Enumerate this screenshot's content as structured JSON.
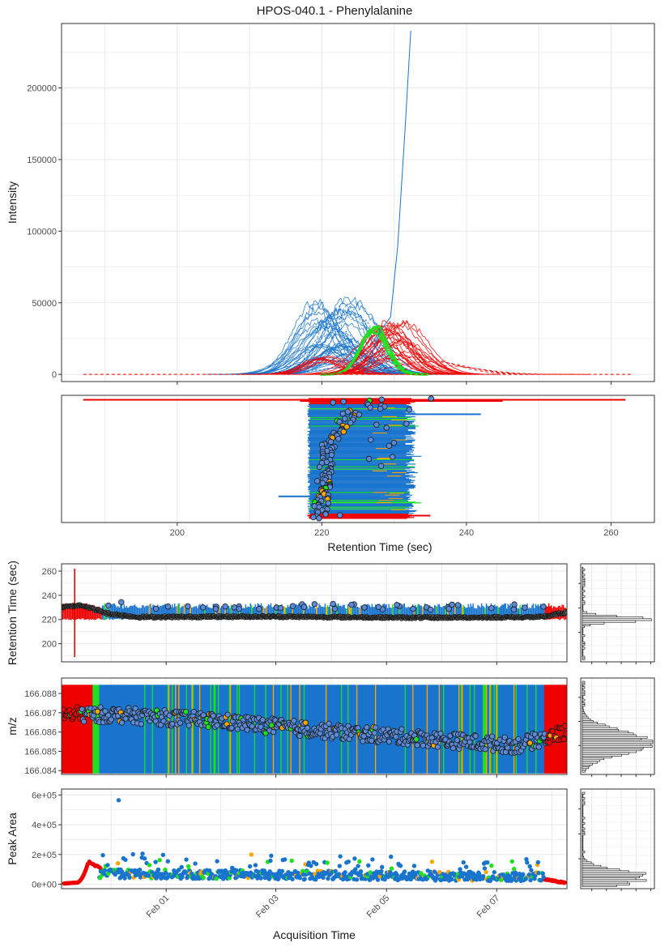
{
  "title": "HPOS-040.1 - Phenylalanine",
  "colors": {
    "blue": "#1874cd",
    "red": "#ee0000",
    "green": "#1fe01f",
    "orange": "#ffa500",
    "grid": "#ebebeb",
    "panel_border": "#333333",
    "marker_fill": "#5a8ad8",
    "marker_stroke": "#1a1a1a"
  },
  "chart_data": [
    {
      "id": "chromatogram",
      "type": "line",
      "ylabel": "Intensity",
      "xlabel": "",
      "xlim": [
        184,
        266
      ],
      "ylim": [
        -5000,
        245000
      ],
      "yticks": [
        0,
        50000,
        100000,
        150000,
        200000
      ],
      "ytick_labels": [
        "0",
        "50000",
        "100000",
        "150000",
        "200000"
      ],
      "xticks": [
        200,
        220,
        240,
        260
      ],
      "grid": true,
      "series": [
        {
          "color": "blue",
          "profile": "gaussian",
          "count": 45,
          "center_range": [
            219,
            225
          ],
          "height_range": [
            5000,
            55000
          ],
          "width": 3.2
        },
        {
          "color": "red",
          "profile": "gaussian",
          "count": 25,
          "center_range": [
            228,
            232
          ],
          "height_range": [
            10000,
            37000
          ],
          "width": 3.0
        },
        {
          "color": "red",
          "profile": "gaussian",
          "count": 8,
          "center_range": [
            219,
            222
          ],
          "height_range": [
            8000,
            13000
          ],
          "width": 2.5
        },
        {
          "color": "green",
          "profile": "gaussian",
          "count": 3,
          "center_range": [
            226.5,
            227.5
          ],
          "height_range": [
            22000,
            34000
          ],
          "width": 2.2
        },
        {
          "color": "blue",
          "profile": "spike",
          "points": [
            [
              226,
              0
            ],
            [
              228,
              30000
            ],
            [
              229.5,
              40000
            ],
            [
              230.5,
              90000
            ],
            [
              231.5,
              170000
            ],
            [
              232.3,
              240000
            ]
          ]
        },
        {
          "color": "red",
          "profile": "dashed-baseline",
          "x": [
            187,
            263
          ],
          "y": 0
        },
        {
          "color": "red",
          "profile": "dashed-tail",
          "center": 233,
          "height": 12000,
          "width": 5
        }
      ]
    },
    {
      "id": "peak-ranges",
      "type": "segment",
      "xlabel": "Retention Time (sec)",
      "xlim": [
        184,
        266
      ],
      "xticks": [
        200,
        220,
        240,
        260
      ],
      "xtick_labels": [
        "200",
        "220",
        "240",
        "260"
      ],
      "n_rows": 60,
      "range_main": [
        218,
        233
      ],
      "outliers": [
        {
          "row_frac": 0.01,
          "x": [
            187,
            262
          ],
          "color": "red"
        },
        {
          "row_frac": 0.02,
          "x": [
            217,
            245
          ],
          "color": "red"
        },
        {
          "row_frac": 0.13,
          "x": [
            218,
            242
          ],
          "color": "blue"
        },
        {
          "row_frac": 0.81,
          "x": [
            214,
            228
          ],
          "color": "blue"
        },
        {
          "row_frac": 0.97,
          "x": [
            218,
            235
          ],
          "color": "red"
        }
      ],
      "rt_trace": {
        "top": 224,
        "mid": 221,
        "bottom": 219,
        "jitter": 2
      }
    },
    {
      "id": "rt-vs-time",
      "type": "scatter",
      "ylabel": "Retention Time (sec)",
      "xlabel": "",
      "x_start": "2021-01-30",
      "x_end": "2021-02-08",
      "ylim": [
        185,
        266
      ],
      "yticks": [
        200,
        220,
        240,
        260
      ],
      "ytick_labels": [
        "200",
        "220",
        "240",
        "260"
      ],
      "trend": [
        [
          0.0,
          230
        ],
        [
          0.04,
          232
        ],
        [
          0.09,
          225
        ],
        [
          0.15,
          222
        ],
        [
          0.4,
          222.5
        ],
        [
          0.7,
          221.5
        ],
        [
          0.95,
          222
        ],
        [
          1.0,
          226
        ]
      ],
      "bar_range": [
        220,
        232
      ],
      "grid": true
    },
    {
      "id": "mz-vs-time",
      "type": "scatter",
      "ylabel": "m/z",
      "xlabel": "",
      "ylim": [
        166.0838,
        166.0888
      ],
      "yticks": [
        166.084,
        166.085,
        166.086,
        166.087,
        166.088
      ],
      "ytick_labels": [
        "166.084",
        "166.085",
        "166.086",
        "166.087",
        "166.088"
      ],
      "trend": [
        [
          0.0,
          166.0869
        ],
        [
          0.1,
          166.0869
        ],
        [
          0.3,
          166.0866
        ],
        [
          0.5,
          166.0861
        ],
        [
          0.7,
          166.0857
        ],
        [
          0.9,
          166.0853
        ],
        [
          1.0,
          166.086
        ]
      ],
      "bar_range": [
        166.0838,
        166.0888
      ],
      "grid": true
    },
    {
      "id": "area-vs-time",
      "type": "scatter",
      "ylabel": "Peak Area",
      "xlabel": "Acquisition Time",
      "ylim": [
        -30000,
        640000
      ],
      "yticks": [
        0,
        200000,
        400000,
        600000
      ],
      "ytick_labels": [
        "0e+00",
        "2e+05",
        "4e+05",
        "6e+05"
      ],
      "xtick_labels": [
        "Feb 01",
        "Feb 03",
        "Feb 05",
        "Feb 07"
      ],
      "xtick_fracs": [
        0.207,
        0.424,
        0.643,
        0.861
      ],
      "outlier_point": {
        "x_frac": 0.113,
        "y": 565000
      },
      "typical_y": 70000,
      "spread_y": 60000,
      "grid": true
    }
  ],
  "side_histograms": [
    {
      "id": "rt-hist",
      "panel": "rt-vs-time",
      "peak": 221
    },
    {
      "id": "mz-hist",
      "panel": "mz-vs-time",
      "peak": 166.0855
    },
    {
      "id": "area-hist",
      "panel": "area-vs-time",
      "peak": 50000
    }
  ]
}
